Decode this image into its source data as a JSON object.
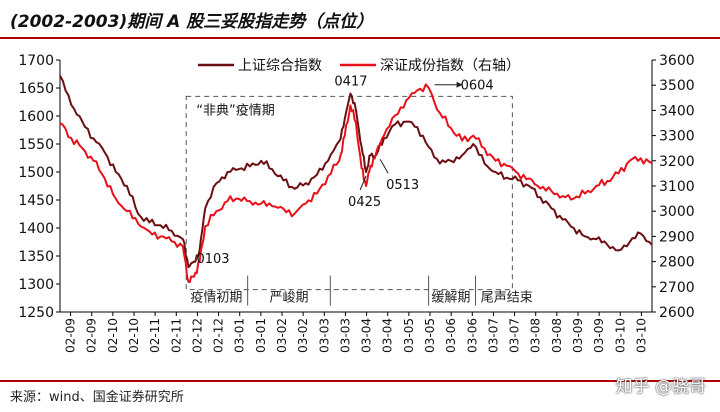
{
  "header": {
    "title": "(2002-2003)期间 A 股三妥股指走势（点位）"
  },
  "footer": {
    "source": "来源：wind、国金证券研究所",
    "watermark": "知乎 @骁哥"
  },
  "colors": {
    "sse": "#6b0f12",
    "szse": "#e8101a",
    "accent": "#b00000"
  },
  "chart_data": {
    "type": "line",
    "title": "",
    "legend_position": "top-center",
    "x": [
      "02-09",
      "02-09",
      "02-10",
      "02-10",
      "02-11",
      "02-11",
      "02-12",
      "02-12",
      "03-01",
      "03-01",
      "03-02",
      "03-02",
      "03-03",
      "03-03",
      "03-04",
      "03-04",
      "03-05",
      "03-05",
      "03-06",
      "03-06",
      "03-07",
      "03-07",
      "03-08",
      "03-08",
      "03-09",
      "03-09",
      "03-10",
      "03-10"
    ],
    "y_left": {
      "min": 1250,
      "max": 1700,
      "ticks": [
        1250,
        1300,
        1350,
        1400,
        1450,
        1500,
        1550,
        1600,
        1650,
        1700
      ]
    },
    "y_right": {
      "min": 2600,
      "max": 3600,
      "ticks": [
        2600,
        2700,
        2800,
        2900,
        3000,
        3100,
        3200,
        3300,
        3400,
        3500,
        3600
      ]
    },
    "grid": false,
    "series": [
      {
        "name": "上证综合指数",
        "axis": "left",
        "points": [
          [
            0,
            1672
          ],
          [
            1,
            1620
          ],
          [
            2,
            1590
          ],
          [
            3,
            1560
          ],
          [
            4,
            1535
          ],
          [
            5,
            1500
          ],
          [
            6,
            1475
          ],
          [
            7,
            1425
          ],
          [
            8,
            1410
          ],
          [
            9,
            1405
          ],
          [
            10,
            1395
          ],
          [
            11,
            1380
          ],
          [
            11.5,
            1330
          ],
          [
            12,
            1340
          ],
          [
            12.5,
            1360
          ],
          [
            13,
            1435
          ],
          [
            14,
            1480
          ],
          [
            15,
            1500
          ],
          [
            16,
            1505
          ],
          [
            17,
            1510
          ],
          [
            18,
            1520
          ],
          [
            19,
            1505
          ],
          [
            20,
            1485
          ],
          [
            21,
            1470
          ],
          [
            22,
            1480
          ],
          [
            23,
            1495
          ],
          [
            24,
            1520
          ],
          [
            25,
            1555
          ],
          [
            25.5,
            1595
          ],
          [
            26,
            1640
          ],
          [
            26.5,
            1610
          ],
          [
            27,
            1545
          ],
          [
            27.4,
            1500
          ],
          [
            27.8,
            1530
          ],
          [
            28.3,
            1530
          ],
          [
            29,
            1560
          ],
          [
            30,
            1585
          ],
          [
            31,
            1590
          ],
          [
            32,
            1580
          ],
          [
            33,
            1545
          ],
          [
            34,
            1515
          ],
          [
            35,
            1520
          ],
          [
            36,
            1530
          ],
          [
            37,
            1550
          ],
          [
            38,
            1515
          ],
          [
            39,
            1500
          ],
          [
            40,
            1490
          ],
          [
            41,
            1485
          ],
          [
            42,
            1475
          ],
          [
            43,
            1455
          ],
          [
            44,
            1435
          ],
          [
            45,
            1415
          ],
          [
            46,
            1400
          ],
          [
            47,
            1385
          ],
          [
            48,
            1380
          ],
          [
            49,
            1370
          ],
          [
            50,
            1360
          ],
          [
            51,
            1375
          ],
          [
            52,
            1390
          ],
          [
            53,
            1370
          ]
        ]
      },
      {
        "name": "深证成份指数（右轴）",
        "axis": "right",
        "points": [
          [
            0,
            3350
          ],
          [
            1,
            3290
          ],
          [
            2,
            3250
          ],
          [
            3,
            3200
          ],
          [
            4,
            3130
          ],
          [
            5,
            3050
          ],
          [
            6,
            3000
          ],
          [
            7,
            2950
          ],
          [
            8,
            2920
          ],
          [
            9,
            2900
          ],
          [
            10,
            2880
          ],
          [
            11,
            2860
          ],
          [
            11.5,
            2720
          ],
          [
            12,
            2740
          ],
          [
            12.5,
            2800
          ],
          [
            13,
            2940
          ],
          [
            14,
            3000
          ],
          [
            15,
            3040
          ],
          [
            16,
            3050
          ],
          [
            17,
            3040
          ],
          [
            18,
            3030
          ],
          [
            19,
            3020
          ],
          [
            20,
            3010
          ],
          [
            21,
            2990
          ],
          [
            22,
            3030
          ],
          [
            23,
            3070
          ],
          [
            24,
            3140
          ],
          [
            25,
            3200
          ],
          [
            25.5,
            3300
          ],
          [
            26,
            3420
          ],
          [
            26.5,
            3350
          ],
          [
            27,
            3170
          ],
          [
            27.4,
            3100
          ],
          [
            27.8,
            3180
          ],
          [
            28.3,
            3230
          ],
          [
            29,
            3300
          ],
          [
            30,
            3380
          ],
          [
            31,
            3440
          ],
          [
            32,
            3480
          ],
          [
            33,
            3490
          ],
          [
            34,
            3390
          ],
          [
            35,
            3330
          ],
          [
            36,
            3280
          ],
          [
            37,
            3300
          ],
          [
            38,
            3250
          ],
          [
            39,
            3200
          ],
          [
            40,
            3180
          ],
          [
            41,
            3150
          ],
          [
            42,
            3130
          ],
          [
            43,
            3090
          ],
          [
            44,
            3080
          ],
          [
            45,
            3060
          ],
          [
            46,
            3050
          ],
          [
            47,
            3070
          ],
          [
            48,
            3100
          ],
          [
            49,
            3120
          ],
          [
            50,
            3150
          ],
          [
            51,
            3200
          ],
          [
            52,
            3210
          ],
          [
            53,
            3190
          ]
        ]
      }
    ],
    "annotations": {
      "box_label": "“非典”疫情期",
      "phases": [
        "疫情初期",
        "严峻期",
        "缓解期",
        "尾声结束"
      ],
      "points": [
        {
          "label": "0103",
          "x": 11.5,
          "axis": "left",
          "y": 1330
        },
        {
          "label": "0417",
          "x": 26,
          "axis": "left",
          "y": 1640
        },
        {
          "label": "0425",
          "x": 27.4,
          "axis": "left",
          "y": 1500
        },
        {
          "label": "0513",
          "x": 28.3,
          "axis": "left",
          "y": 1530
        },
        {
          "label": "0604",
          "x": 33,
          "axis": "right",
          "y": 3490
        }
      ]
    }
  }
}
